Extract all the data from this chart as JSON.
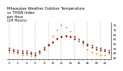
{
  "title": "Milwaukee Weather Outdoor Temperature\nvs THSW Index\nper Hour\n(24 Hours)",
  "background_color": "#ffffff",
  "grid_color": "#aaaaaa",
  "hours": [
    0,
    1,
    2,
    3,
    4,
    5,
    6,
    7,
    8,
    9,
    10,
    11,
    12,
    13,
    14,
    15,
    16,
    17,
    18,
    19,
    20,
    21,
    22,
    23
  ],
  "temp_values": [
    50,
    49,
    48,
    47,
    47,
    46,
    45,
    47,
    51,
    54,
    57,
    61,
    63,
    64,
    63,
    62,
    60,
    58,
    55,
    53,
    51,
    50,
    49,
    48
  ],
  "thsw_values": [
    46,
    45,
    44,
    43,
    43,
    42,
    41,
    44,
    50,
    55,
    63,
    70,
    75,
    73,
    68,
    63,
    58,
    54,
    49,
    46,
    44,
    43,
    43,
    44
  ],
  "black_values": [
    48,
    47,
    46,
    45,
    45,
    44,
    43,
    46,
    49,
    53,
    56,
    60,
    62,
    63,
    62,
    60,
    58,
    56,
    53,
    51,
    49,
    48,
    47,
    46
  ],
  "temp_color": "#dd0000",
  "thsw_color": "#ff8800",
  "black_color": "#111111",
  "dot_size": 2.5,
  "ylim": [
    38,
    78
  ],
  "yticks": [
    40,
    45,
    50,
    55,
    60,
    65,
    70,
    75
  ],
  "ytick_labels": [
    "40",
    "45",
    "50",
    "55",
    "60",
    "65",
    "70",
    "75"
  ],
  "title_fontsize": 3.8,
  "tick_fontsize": 3.0,
  "xtick_labels": [
    "0",
    "",
    "2",
    "",
    "4",
    "",
    "6",
    "",
    "8",
    "",
    "10",
    "",
    "12",
    "",
    "14",
    "",
    "16",
    "",
    "18",
    "",
    "20",
    "",
    "22",
    ""
  ],
  "vgrid_hours": [
    0,
    3,
    6,
    9,
    12,
    15,
    18,
    21
  ]
}
